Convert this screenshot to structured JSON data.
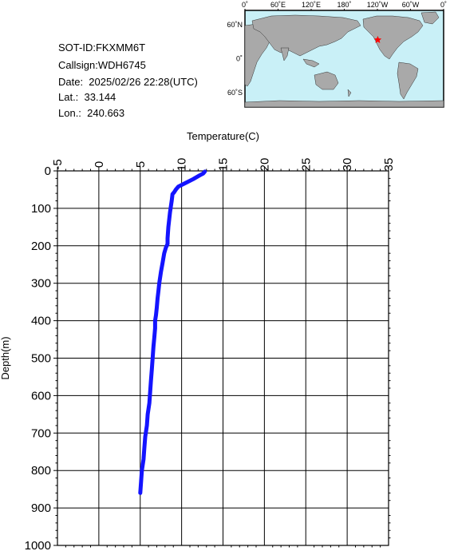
{
  "info": {
    "sot_id": "SOT-ID:FKXMM6T",
    "callsign": "Callsign:WDH6745",
    "date": "Date:  2025/02/26 22:28(UTC)",
    "lat": "Lat.:  33.144",
    "lon": "Lon.:  240.663"
  },
  "map": {
    "top_labels": [
      "0˚",
      "60˚E",
      "120˚E",
      "180˚",
      "120˚W",
      "60˚W",
      "0˚"
    ],
    "left_labels": [
      "60˚N",
      "0˚",
      "60˚S"
    ],
    "ocean_color": "#c9f0f7",
    "land_color": "#a9a9a9",
    "marker": {
      "lat": 33.144,
      "lon": 240.663,
      "color": "#ff0000",
      "icon": "star-icon"
    }
  },
  "chart_data": {
    "type": "line",
    "title": "",
    "xlabel": "Temperature(C)",
    "ylabel": "Depth(m)",
    "xlim": [
      -5,
      35
    ],
    "ylim": [
      0,
      1000
    ],
    "y_inverted": true,
    "x_ticks": [
      -5,
      0,
      5,
      10,
      15,
      20,
      25,
      30,
      35
    ],
    "y_ticks": [
      0,
      100,
      200,
      300,
      400,
      500,
      600,
      700,
      800,
      900,
      1000
    ],
    "grid": true,
    "series": [
      {
        "color": "#1414ff",
        "points": [
          [
            12.8,
            2
          ],
          [
            12.6,
            7
          ],
          [
            12.1,
            13
          ],
          [
            11.4,
            22
          ],
          [
            10.4,
            33
          ],
          [
            9.6,
            42
          ],
          [
            9.3,
            50
          ],
          [
            9.1,
            57
          ],
          [
            8.9,
            62
          ],
          [
            8.8,
            80
          ],
          [
            8.6,
            110
          ],
          [
            8.4,
            150
          ],
          [
            8.3,
            180
          ],
          [
            8.3,
            195
          ],
          [
            8.1,
            205
          ],
          [
            7.9,
            220
          ],
          [
            7.7,
            245
          ],
          [
            7.5,
            270
          ],
          [
            7.3,
            300
          ],
          [
            7.2,
            320
          ],
          [
            7.1,
            340
          ],
          [
            7.0,
            365
          ],
          [
            6.9,
            385
          ],
          [
            6.8,
            400
          ],
          [
            6.8,
            420
          ],
          [
            6.7,
            445
          ],
          [
            6.6,
            470
          ],
          [
            6.5,
            500
          ],
          [
            6.4,
            530
          ],
          [
            6.3,
            560
          ],
          [
            6.2,
            590
          ],
          [
            6.1,
            620
          ],
          [
            5.9,
            650
          ],
          [
            5.8,
            680
          ],
          [
            5.6,
            710
          ],
          [
            5.5,
            740
          ],
          [
            5.4,
            770
          ],
          [
            5.2,
            800
          ],
          [
            5.1,
            830
          ],
          [
            5.0,
            860
          ]
        ]
      }
    ]
  }
}
